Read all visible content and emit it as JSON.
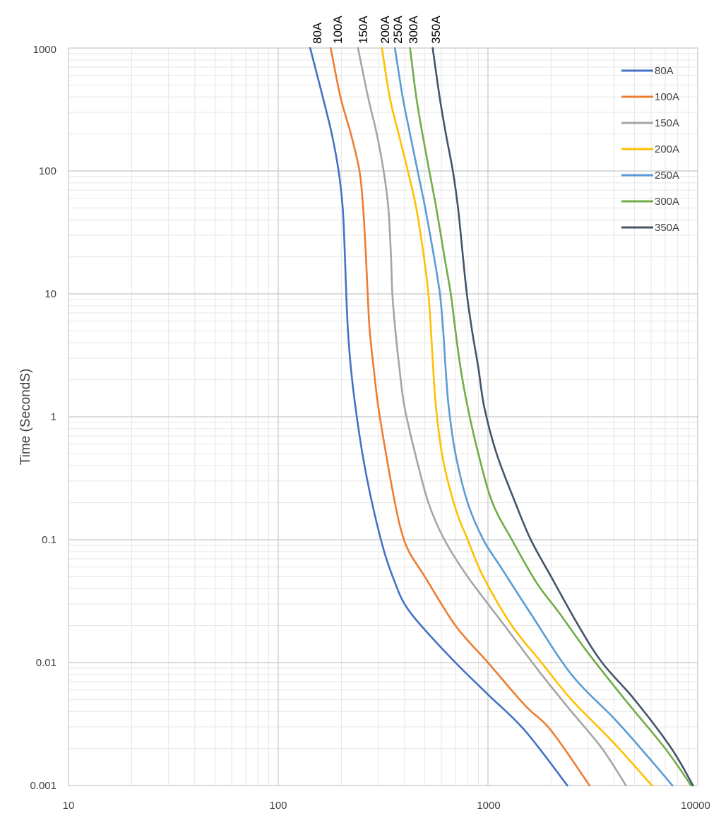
{
  "chart_data": {
    "type": "line",
    "title": "",
    "xlabel": "",
    "ylabel": "Time (SecondS)",
    "x_scale": "log",
    "y_scale": "log",
    "xlim": [
      10,
      10000
    ],
    "ylim": [
      0.001,
      1000
    ],
    "x_ticks": [
      "10",
      "100",
      "1000",
      "10000"
    ],
    "y_ticks": [
      "0.001",
      "0.01",
      "0.1",
      "1",
      "10",
      "100",
      "1000"
    ],
    "grid": true,
    "legend_position": "top-right",
    "top_labels": [
      "80A",
      "100A",
      "150A",
      "200A",
      "250A",
      "300A",
      "350A"
    ],
    "series": [
      {
        "name": "80A",
        "color": "#4472C4",
        "points": [
          [
            142,
            1000
          ],
          [
            163,
            400
          ],
          [
            180,
            200
          ],
          [
            194,
            100
          ],
          [
            203,
            50
          ],
          [
            208,
            20
          ],
          [
            211,
            10
          ],
          [
            215,
            5
          ],
          [
            222,
            2.5
          ],
          [
            232,
            1.3
          ],
          [
            252,
            0.5
          ],
          [
            280,
            0.2
          ],
          [
            320,
            0.08
          ],
          [
            360,
            0.045
          ],
          [
            400,
            0.03
          ],
          [
            480,
            0.02
          ],
          [
            700,
            0.01
          ],
          [
            1000,
            0.0055
          ],
          [
            1500,
            0.0028
          ],
          [
            2390,
            0.001
          ]
        ]
      },
      {
        "name": "100A",
        "color": "#ED7D31",
        "points": [
          [
            178,
            1000
          ],
          [
            198,
            400
          ],
          [
            222,
            200
          ],
          [
            244,
            100
          ],
          [
            254,
            50
          ],
          [
            262,
            20
          ],
          [
            267,
            10
          ],
          [
            273,
            5
          ],
          [
            285,
            2.5
          ],
          [
            300,
            1.2
          ],
          [
            330,
            0.45
          ],
          [
            360,
            0.2
          ],
          [
            385,
            0.12
          ],
          [
            420,
            0.08
          ],
          [
            500,
            0.05
          ],
          [
            700,
            0.02
          ],
          [
            1000,
            0.01
          ],
          [
            1500,
            0.0045
          ],
          [
            2000,
            0.0028
          ],
          [
            3050,
            0.001
          ]
        ]
      },
      {
        "name": "150A",
        "color": "#A5A5A5",
        "points": [
          [
            240,
            1000
          ],
          [
            268,
            400
          ],
          [
            295,
            200
          ],
          [
            318,
            100
          ],
          [
            335,
            50
          ],
          [
            345,
            20
          ],
          [
            350,
            10
          ],
          [
            362,
            5
          ],
          [
            378,
            2.5
          ],
          [
            400,
            1.2
          ],
          [
            450,
            0.5
          ],
          [
            520,
            0.2
          ],
          [
            620,
            0.1
          ],
          [
            800,
            0.05
          ],
          [
            1200,
            0.02
          ],
          [
            1800,
            0.008
          ],
          [
            2500,
            0.004
          ],
          [
            3500,
            0.002
          ],
          [
            4550,
            0.001
          ]
        ]
      },
      {
        "name": "200A",
        "color": "#FFC000",
        "points": [
          [
            312,
            1000
          ],
          [
            340,
            400
          ],
          [
            375,
            200
          ],
          [
            415,
            100
          ],
          [
            455,
            50
          ],
          [
            495,
            20
          ],
          [
            520,
            10
          ],
          [
            535,
            5
          ],
          [
            548,
            2.5
          ],
          [
            565,
            1.2
          ],
          [
            610,
            0.45
          ],
          [
            700,
            0.18
          ],
          [
            800,
            0.1
          ],
          [
            950,
            0.05
          ],
          [
            1300,
            0.02
          ],
          [
            1800,
            0.01
          ],
          [
            2500,
            0.005
          ],
          [
            4000,
            0.0022
          ],
          [
            6050,
            0.001
          ]
        ]
      },
      {
        "name": "250A",
        "color": "#5B9BD5",
        "points": [
          [
            360,
            1000
          ],
          [
            392,
            400
          ],
          [
            425,
            200
          ],
          [
            462,
            100
          ],
          [
            502,
            50
          ],
          [
            553,
            20
          ],
          [
            590,
            10
          ],
          [
            612,
            5
          ],
          [
            628,
            2.5
          ],
          [
            650,
            1.2
          ],
          [
            700,
            0.5
          ],
          [
            800,
            0.2
          ],
          [
            950,
            0.1
          ],
          [
            1150,
            0.06
          ],
          [
            1600,
            0.025
          ],
          [
            2500,
            0.008
          ],
          [
            4000,
            0.0035
          ],
          [
            5500,
            0.0019
          ],
          [
            7580,
            0.001
          ]
        ]
      },
      {
        "name": "300A",
        "color": "#70AD47",
        "points": [
          [
            425,
            1000
          ],
          [
            455,
            400
          ],
          [
            487,
            200
          ],
          [
            525,
            100
          ],
          [
            567,
            50
          ],
          [
            620,
            20
          ],
          [
            665,
            10
          ],
          [
            700,
            5
          ],
          [
            740,
            2.5
          ],
          [
            800,
            1.2
          ],
          [
            900,
            0.5
          ],
          [
            1050,
            0.2
          ],
          [
            1300,
            0.1
          ],
          [
            1700,
            0.045
          ],
          [
            2200,
            0.025
          ],
          [
            3000,
            0.012
          ],
          [
            4500,
            0.005
          ],
          [
            7000,
            0.002
          ],
          [
            9300,
            0.001
          ]
        ]
      },
      {
        "name": "350A",
        "color": "#44546A",
        "points": [
          [
            545,
            1000
          ],
          [
            588,
            400
          ],
          [
            630,
            200
          ],
          [
            680,
            100
          ],
          [
            720,
            50
          ],
          [
            760,
            20
          ],
          [
            793,
            10
          ],
          [
            840,
            5
          ],
          [
            900,
            2.5
          ],
          [
            960,
            1.2
          ],
          [
            1100,
            0.5
          ],
          [
            1350,
            0.2
          ],
          [
            1600,
            0.1
          ],
          [
            2000,
            0.05
          ],
          [
            2700,
            0.02
          ],
          [
            3500,
            0.01
          ],
          [
            5000,
            0.005
          ],
          [
            7500,
            0.002
          ],
          [
            9500,
            0.001
          ]
        ]
      }
    ]
  }
}
